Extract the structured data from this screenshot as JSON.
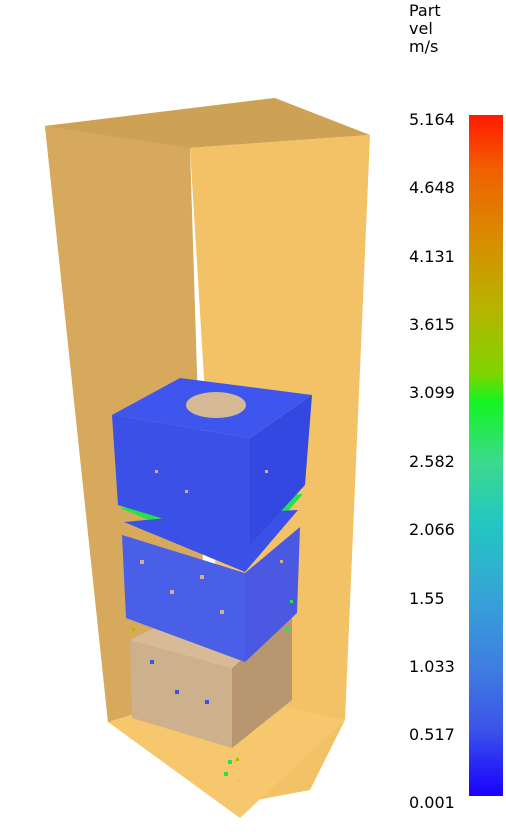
{
  "legend": {
    "title_lines": [
      "Part",
      "vel",
      "m/s"
    ],
    "ticks": [
      "5.164",
      "4.648",
      "4.131",
      "3.615",
      "3.099",
      "2.582",
      "2.066",
      "1.55",
      "1.033",
      "0.517",
      "0.001"
    ]
  },
  "colors": {
    "container_dark": "#d4a85a",
    "container_light": "#f3c267",
    "particles_blue": "#3a50e6",
    "particles_green": "#23e34a",
    "particles_tan": "#cdb08c"
  }
}
